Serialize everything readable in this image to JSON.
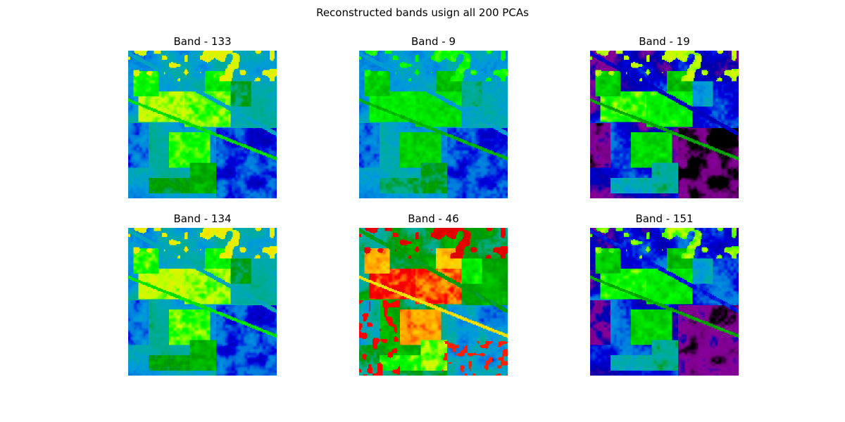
{
  "figure": {
    "title": "Reconstructed bands usign all 200 PCAs"
  },
  "chart_data": [
    {
      "type": "heatmap",
      "title": "Band - 133",
      "band": 133,
      "colormap": "nipy_spectral",
      "grid": false,
      "axes": "off",
      "pixels": [
        145,
        145
      ]
    },
    {
      "type": "heatmap",
      "title": "Band - 9",
      "band": 9,
      "colormap": "nipy_spectral",
      "grid": false,
      "axes": "off",
      "pixels": [
        145,
        145
      ]
    },
    {
      "type": "heatmap",
      "title": "Band - 19",
      "band": 19,
      "colormap": "nipy_spectral",
      "grid": false,
      "axes": "off",
      "pixels": [
        145,
        145
      ]
    },
    {
      "type": "heatmap",
      "title": "Band - 134",
      "band": 134,
      "colormap": "nipy_spectral",
      "grid": false,
      "axes": "off",
      "pixels": [
        145,
        145
      ]
    },
    {
      "type": "heatmap",
      "title": "Band - 46",
      "band": 46,
      "colormap": "nipy_spectral",
      "grid": false,
      "axes": "off",
      "pixels": [
        145,
        145
      ]
    },
    {
      "type": "heatmap",
      "title": "Band - 151",
      "band": 151,
      "colormap": "nipy_spectral",
      "grid": false,
      "axes": "off",
      "pixels": [
        145,
        145
      ]
    }
  ]
}
